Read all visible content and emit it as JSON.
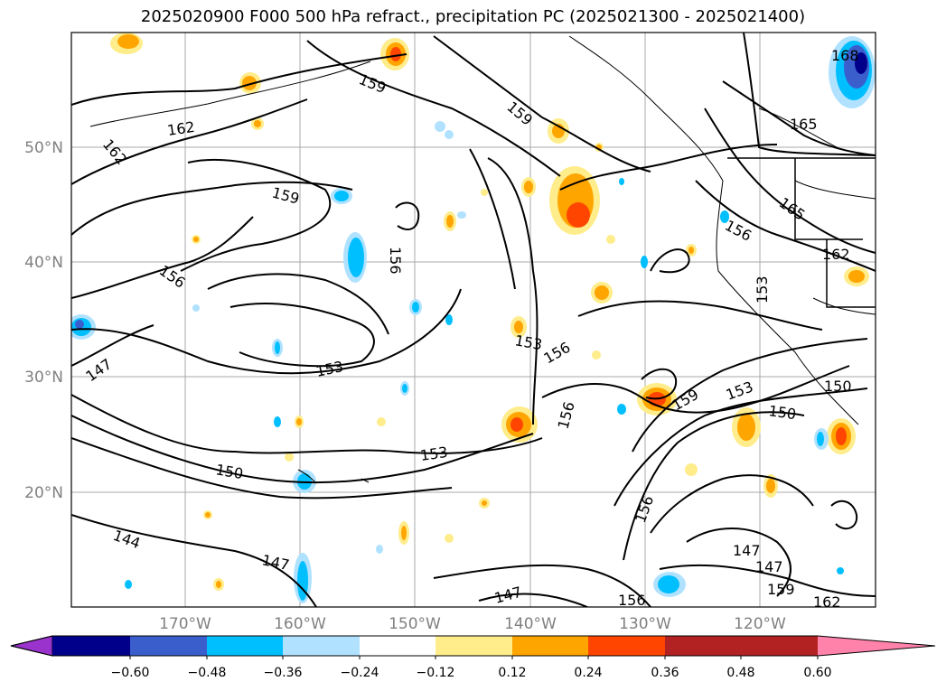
{
  "title": "2025020900 F000 500 hPa refract., precipitation PC (2025021300 - 2025021400)",
  "map": {
    "lat_labels": [
      "50°N",
      "40°N",
      "30°N",
      "20°N"
    ],
    "lon_labels": [
      "170°W",
      "160°W",
      "150°W",
      "140°W",
      "130°W",
      "120°W"
    ],
    "contour_labels": [
      "159",
      "159",
      "162",
      "162",
      "168",
      "165",
      "165",
      "159",
      "156",
      "156",
      "162",
      "153",
      "156",
      "156",
      "153",
      "156",
      "153",
      "147",
      "159",
      "153",
      "150",
      "150",
      "150",
      "153",
      "144",
      "147",
      "147",
      "147",
      "147",
      "156",
      "159",
      "156",
      "162"
    ],
    "grid": true
  },
  "colorbar": {
    "ticks": [
      "−0.60",
      "−0.48",
      "−0.36",
      "−0.24",
      "−0.12",
      "0.12",
      "0.24",
      "0.36",
      "0.48",
      "0.60"
    ],
    "colors": [
      "#9a32cd",
      "#00008b",
      "#3a5fcd",
      "#00bfff",
      "#b0e2ff",
      "#ffffff",
      "#ffec8b",
      "#ffa500",
      "#ff4500",
      "#b22222",
      "#ff82ab"
    ],
    "extend": "both"
  }
}
